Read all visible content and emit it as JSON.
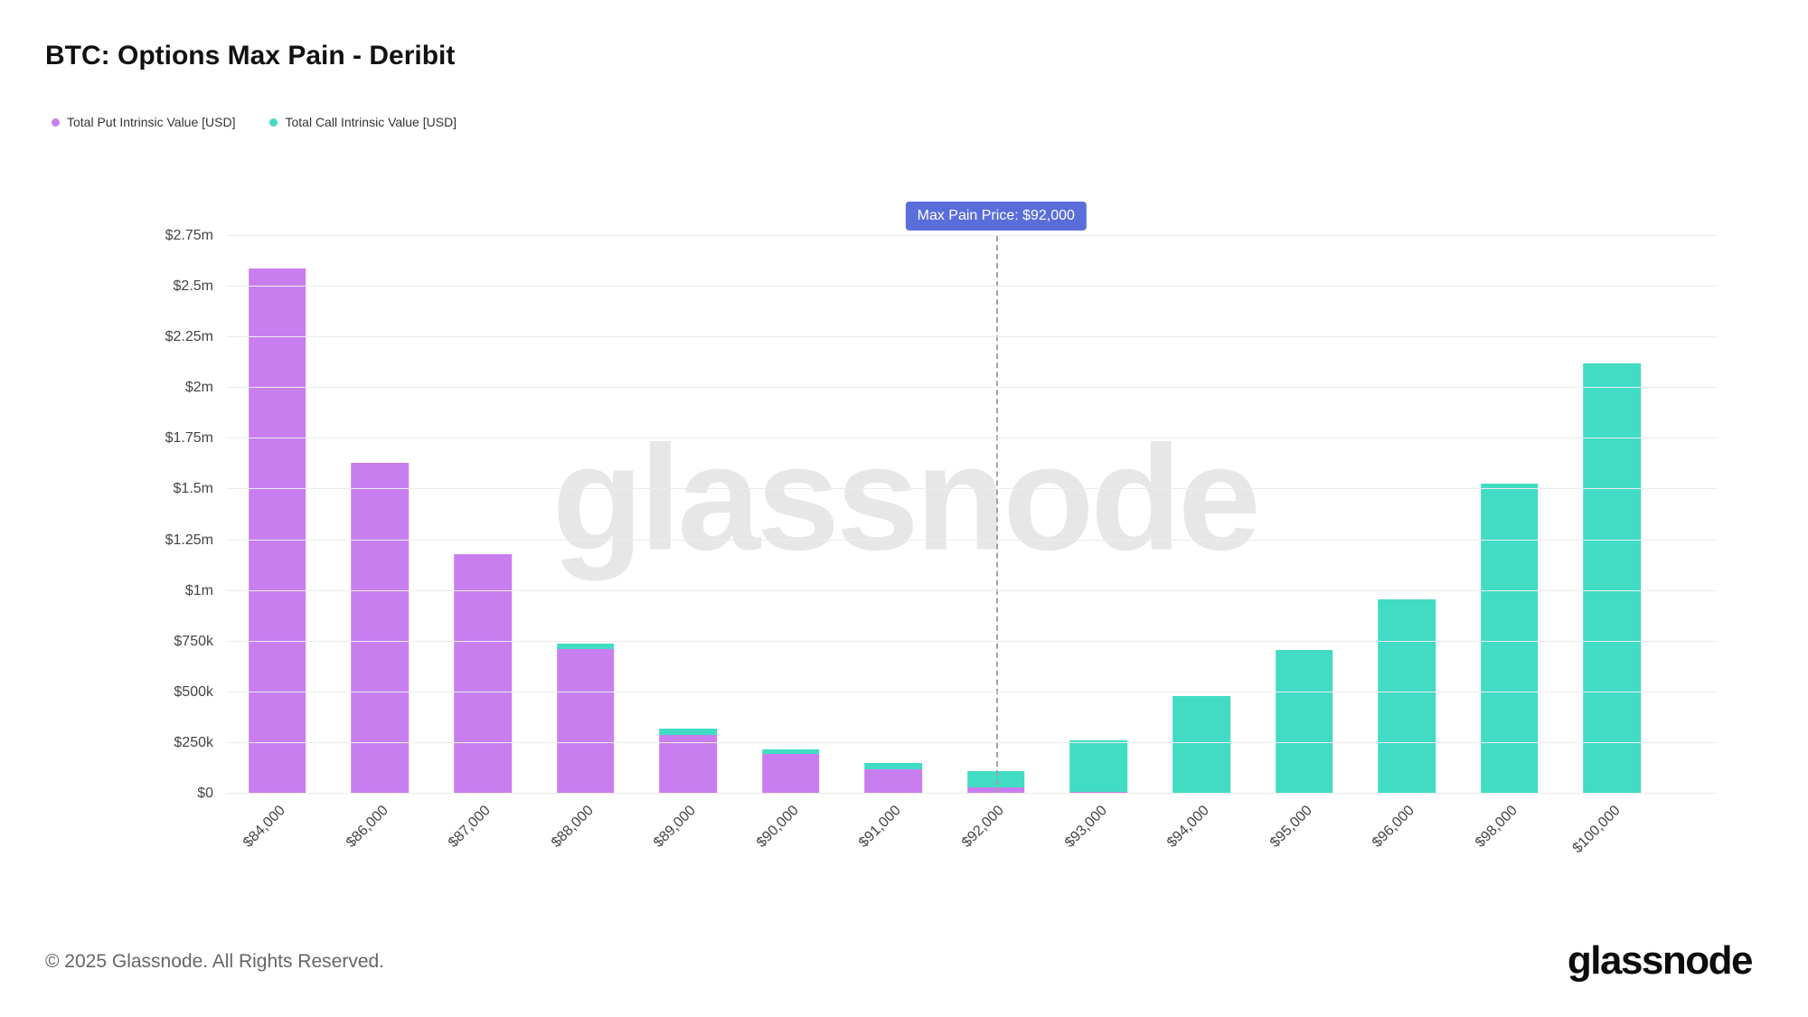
{
  "title": "BTC: Options Max Pain - Deribit",
  "legend": [
    {
      "label": "Total Put Intrinsic Value [USD]",
      "color": "#c97ef0"
    },
    {
      "label": "Total Call Intrinsic Value [USD]",
      "color": "#41dcc3"
    }
  ],
  "annotation": {
    "label": "Max Pain Price: $92,000",
    "category": "$92,000",
    "color": "#5a6edb",
    "line_color": "#a3a3a3"
  },
  "watermark": "glassnode",
  "footer": {
    "copyright": "© 2025 Glassnode. All Rights Reserved.",
    "logo": "glassnode"
  },
  "chart_data": {
    "type": "bar",
    "stacked": true,
    "title": "BTC: Options Max Pain - Deribit",
    "xlabel": "",
    "ylabel": "",
    "grid": true,
    "legend_position": "top-left",
    "ymax": 2750000,
    "yticks": [
      "$0",
      "$250k",
      "$500k",
      "$750k",
      "$1m",
      "$1.25m",
      "$1.5m",
      "$1.75m",
      "$2m",
      "$2.25m",
      "$2.5m",
      "$2.75m"
    ],
    "ytick_values": [
      0,
      250000,
      500000,
      750000,
      1000000,
      1250000,
      1500000,
      1750000,
      2000000,
      2250000,
      2500000,
      2750000
    ],
    "categories": [
      "$84,000",
      "$86,000",
      "$87,000",
      "$88,000",
      "$89,000",
      "$90,000",
      "$91,000",
      "$92,000",
      "$93,000",
      "$94,000",
      "$95,000",
      "$96,000",
      "$98,000",
      "$100,000"
    ],
    "series": [
      {
        "name": "Total Put Intrinsic Value [USD]",
        "color": "#c97ef0",
        "values": [
          2590000,
          1630000,
          1180000,
          715000,
          290000,
          195000,
          120000,
          30000,
          8000,
          0,
          0,
          0,
          0,
          0
        ]
      },
      {
        "name": "Total Call Intrinsic Value [USD]",
        "color": "#41dcc3",
        "values": [
          0,
          0,
          0,
          25000,
          30000,
          25000,
          30000,
          80000,
          255000,
          480000,
          710000,
          960000,
          1530000,
          2120000
        ]
      }
    ]
  }
}
